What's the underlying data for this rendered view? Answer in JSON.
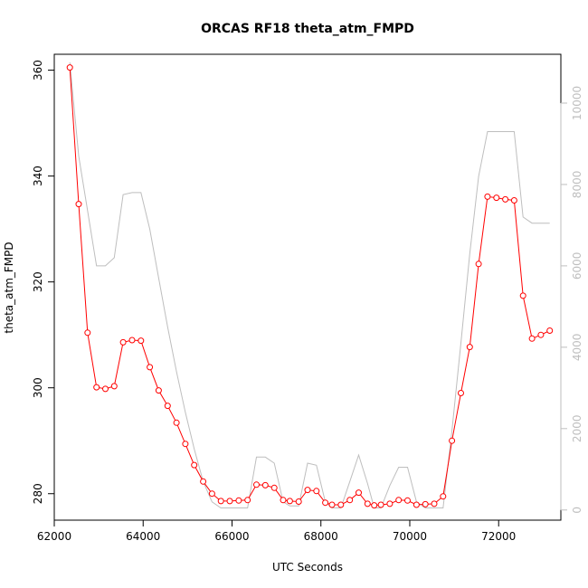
{
  "chart_data": {
    "type": "line",
    "title": "ORCAS RF18 theta_atm_FMPD",
    "xlabel": "UTC Seconds",
    "ylabel": "theta_atm_FMPD",
    "xlim": [
      62000,
      73400
    ],
    "ylim": [
      275,
      363
    ],
    "y2lim": [
      -250,
      11200
    ],
    "x_ticks": [
      62000,
      64000,
      66000,
      68000,
      70000,
      72000
    ],
    "x_tick_labels": [
      "62000",
      "64000",
      "66000",
      "68000",
      "70000",
      "72000"
    ],
    "y_ticks": [
      280,
      300,
      320,
      340,
      360
    ],
    "y_tick_labels": [
      "280",
      "300",
      "320",
      "340",
      "360"
    ],
    "y2_ticks": [
      0,
      2000,
      4000,
      6000,
      8000,
      10000
    ],
    "y2_tick_labels": [
      "0",
      "2000",
      "4000",
      "6000",
      "8000",
      "10000"
    ],
    "colors": {
      "primary": "#ff0000",
      "secondary": "#bebebe",
      "axis": "#000000"
    },
    "series": [
      {
        "axis": "left",
        "style": "line+points",
        "x": [
          62350,
          62550,
          62750,
          62950,
          63150,
          63350,
          63550,
          63750,
          63950,
          64150,
          64350,
          64550,
          64750,
          64950,
          65150,
          65350,
          65550,
          65750,
          65950,
          66150,
          66350,
          66550,
          66750,
          66950,
          67150,
          67300,
          67500,
          67700,
          67900,
          68100,
          68250,
          68450,
          68650,
          68850,
          69050,
          69200,
          69350,
          69550,
          69750,
          69950,
          70150,
          70350,
          70550,
          70750,
          70950,
          71150,
          71350,
          71550,
          71750,
          71950,
          72150,
          72350,
          72550,
          72750,
          72950,
          73150
        ],
        "y": [
          360.5,
          334.7,
          310.4,
          300.1,
          299.8,
          300.3,
          308.6,
          309.0,
          308.9,
          303.9,
          299.5,
          296.6,
          293.4,
          289.4,
          285.4,
          282.3,
          280.0,
          278.6,
          278.6,
          278.7,
          278.8,
          281.7,
          281.6,
          281.1,
          278.8,
          278.6,
          278.5,
          280.7,
          280.5,
          278.3,
          277.9,
          277.9,
          278.8,
          280.2,
          278.1,
          277.8,
          277.9,
          278.1,
          278.8,
          278.7,
          277.9,
          278.0,
          278.1,
          279.5,
          290.0,
          299.0,
          307.7,
          323.4,
          336.1,
          335.9,
          335.6,
          335.4,
          317.4,
          309.3,
          310.0,
          310.8
        ]
      },
      {
        "axis": "right",
        "style": "line",
        "x": [
          62350,
          62550,
          62950,
          63150,
          63350,
          63550,
          63750,
          63950,
          64150,
          64350,
          64550,
          64750,
          64950,
          65150,
          65350,
          65550,
          65750,
          65950,
          66150,
          66350,
          66550,
          66750,
          66950,
          67150,
          67300,
          67500,
          67700,
          67900,
          68100,
          68250,
          68450,
          68650,
          68850,
          69050,
          69200,
          69350,
          69550,
          69750,
          69950,
          70150,
          70350,
          70550,
          70750,
          70950,
          71150,
          71350,
          71550,
          71750,
          71950,
          72150,
          72350,
          72550,
          72750,
          72950,
          73150
        ],
        "y": [
          11000,
          8700,
          6000,
          6000,
          6200,
          7750,
          7800,
          7800,
          6900,
          5700,
          4500,
          3400,
          2400,
          1500,
          700,
          200,
          50,
          50,
          50,
          50,
          1300,
          1300,
          1150,
          200,
          100,
          100,
          1150,
          1100,
          200,
          50,
          50,
          700,
          1350,
          650,
          50,
          50,
          600,
          1050,
          1050,
          200,
          50,
          50,
          50,
          1950,
          4100,
          6300,
          8200,
          9300,
          9300,
          9300,
          9300,
          7200,
          7050,
          7050,
          7050
        ]
      }
    ]
  }
}
